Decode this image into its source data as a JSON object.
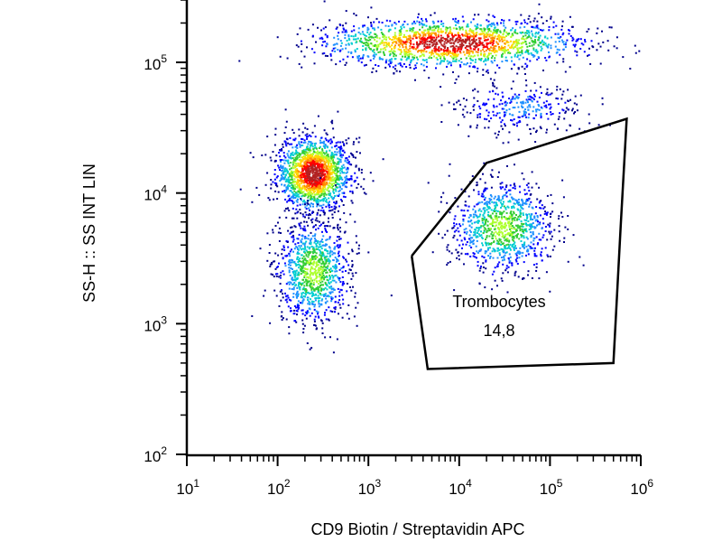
{
  "chart_data": {
    "type": "scatter",
    "title": "",
    "xlabel": "CD9 Biotin / Streptavidin APC",
    "ylabel": "SS-H :: SS INT LIN",
    "xscale": "log",
    "yscale": "log",
    "xlim": [
      10,
      1000000
    ],
    "ylim": [
      100,
      300000
    ],
    "x_ticks": [
      {
        "base": "10",
        "exp": "1"
      },
      {
        "base": "10",
        "exp": "2"
      },
      {
        "base": "10",
        "exp": "3"
      },
      {
        "base": "10",
        "exp": "4"
      },
      {
        "base": "10",
        "exp": "5"
      },
      {
        "base": "10",
        "exp": "6"
      }
    ],
    "y_ticks": [
      {
        "base": "10",
        "exp": "2"
      },
      {
        "base": "10",
        "exp": "3"
      },
      {
        "base": "10",
        "exp": "4"
      },
      {
        "base": "10",
        "exp": "5"
      }
    ],
    "gate": {
      "name": "Trombocytes",
      "value": "14,8",
      "vertices": [
        [
          3000,
          3300
        ],
        [
          4500,
          450
        ],
        [
          500000,
          500
        ],
        [
          600000,
          5500
        ],
        [
          700000,
          37000
        ],
        [
          20000,
          17000
        ],
        [
          3000,
          3300
        ]
      ]
    },
    "populations": [
      {
        "center": [
          250,
          14000
        ],
        "spread": [
          0.2,
          0.14
        ],
        "count": 1700,
        "density": "high"
      },
      {
        "center": [
          250,
          2500
        ],
        "spread": [
          0.2,
          0.2
        ],
        "count": 1000,
        "density": "medium"
      },
      {
        "center": [
          8000,
          140000
        ],
        "spread": [
          0.7,
          0.09
        ],
        "count": 1700,
        "density": "high"
      },
      {
        "center": [
          30000,
          5500
        ],
        "spread": [
          0.28,
          0.17
        ],
        "count": 1000,
        "density": "medium"
      },
      {
        "center": [
          50000,
          45000
        ],
        "spread": [
          0.35,
          0.1
        ],
        "count": 300,
        "density": "low"
      }
    ],
    "colormap": [
      "#00008b",
      "#0000ff",
      "#1e90ff",
      "#00ced1",
      "#32cd32",
      "#adff2f",
      "#ffd700",
      "#ff8c00",
      "#ff0000",
      "#b22222"
    ]
  }
}
